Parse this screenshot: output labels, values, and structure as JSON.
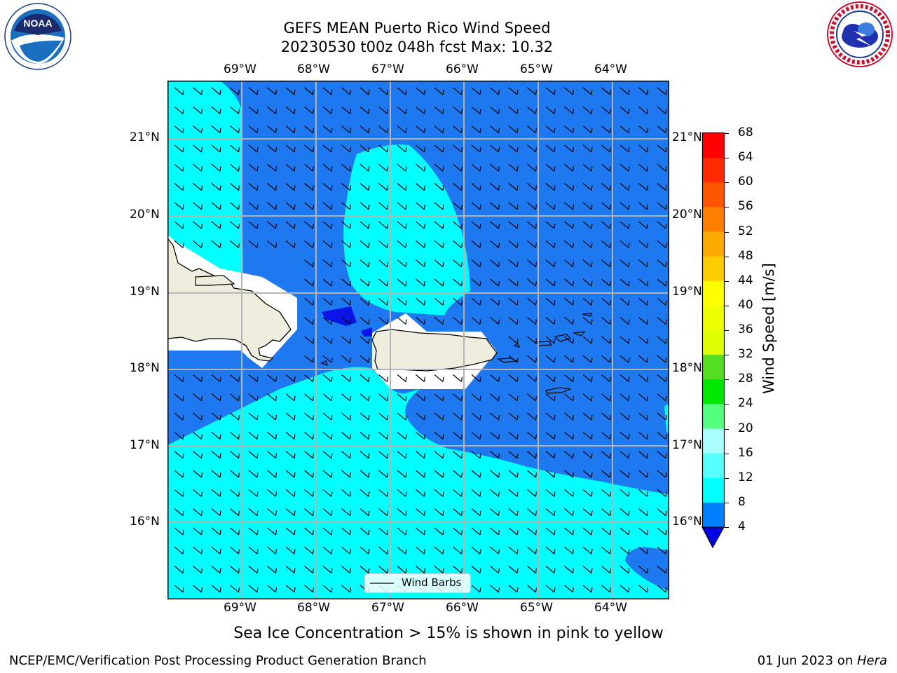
{
  "title_line1": "GEFS MEAN Puerto Rico Wind Speed",
  "title_line2": "20230530 t00z 048h fcst   Max: 10.32",
  "lon_labels": [
    "69°W",
    "68°W",
    "67°W",
    "66°W",
    "65°W",
    "64°W"
  ],
  "lat_labels": [
    "21°N",
    "20°N",
    "19°N",
    "18°N",
    "17°N",
    "16°N"
  ],
  "legend": {
    "label": "Wind Barbs"
  },
  "colorbar": {
    "label": "Wind Speed [m/s]",
    "ticks": [
      "68",
      "64",
      "60",
      "56",
      "52",
      "48",
      "44",
      "40",
      "36",
      "32",
      "28",
      "24",
      "20",
      "16",
      "12",
      "8",
      "4"
    ],
    "colors": [
      "#ff0000",
      "#ff2600",
      "#ff5000",
      "#ff7a00",
      "#ffa000",
      "#ffc800",
      "#ffe600",
      "#ffff00",
      "#e6ff00",
      "#c8ff00",
      "#7fe61a",
      "#00e600",
      "#19d219",
      "#50ff80",
      "#a0fff0",
      "#50ffff",
      "#00ffff",
      "#0080ff"
    ],
    "under_color": "#0000e6"
  },
  "colors": {
    "ocean_low": "#0080ff",
    "ocean_mid": "#00ffff",
    "ocean_deep": "#0a14e6",
    "land": "#efedde",
    "masked": "#ffffff"
  },
  "note": "Sea Ice Concentration > 15% is shown in pink to yellow",
  "footer_left": "NCEP/EMC/Verification Post Processing Product Generation Branch",
  "footer_right_prefix": "01 Jun 2023 on ",
  "footer_right_host": "Hera",
  "logos": {
    "noaa": "NOAA",
    "nws": "NATIONAL WEATHER SERVICE"
  }
}
